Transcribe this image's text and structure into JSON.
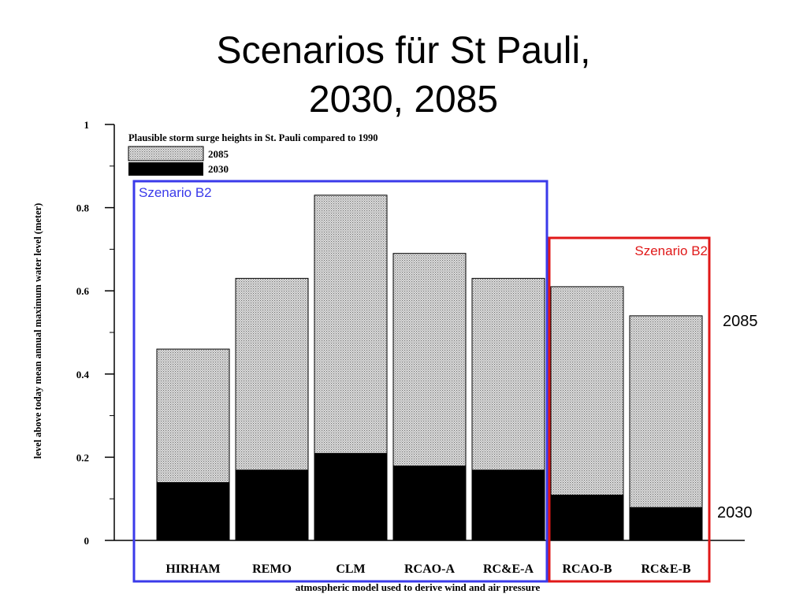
{
  "slide": {
    "title_line1": "Scenarios für St Pauli,",
    "title_line2": "2030, 2085"
  },
  "colors": {
    "bar_2030": "#000000",
    "bar_2085_pattern": "dotted light gray",
    "box_left": "#3a3aea",
    "box_right": "#e01818"
  },
  "annotations": {
    "left_box_label": "Szenario B2",
    "right_box_label": "Szenario B2",
    "label_2085": "2085",
    "label_2030": "2030"
  },
  "chart_data": {
    "type": "bar",
    "title": "Plausible storm surge heights in St. Pauli compared to 1990",
    "xlabel": "atmospheric model used to derive wind and air pressure",
    "ylabel": "level above today mean annual maximum water level (meter)",
    "categories": [
      "HIRHAM",
      "REMO",
      "CLM",
      "RCAO-A",
      "RC&E-A",
      "RCAO-B",
      "RC&E-B"
    ],
    "series": [
      {
        "name": "2085",
        "values": [
          0.46,
          0.63,
          0.83,
          0.69,
          0.63,
          0.61,
          0.54
        ]
      },
      {
        "name": "2030",
        "values": [
          0.14,
          0.17,
          0.21,
          0.18,
          0.17,
          0.11,
          0.08
        ]
      }
    ],
    "ylim": [
      0,
      1
    ],
    "yticks": [
      "0",
      "0.2",
      "0.4",
      "0.6",
      "0.8",
      "1"
    ],
    "legend_position": "top-left",
    "grid": false,
    "overlay": true
  }
}
